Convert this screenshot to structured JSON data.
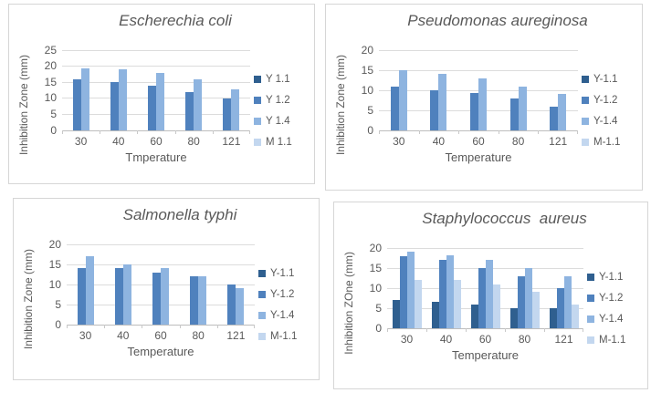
{
  "page": {
    "background": "#ffffff",
    "text_color": "#595959",
    "gridline_color": "#dcdcdc",
    "axis_color": "#bdbdbd"
  },
  "palette": {
    "series1_dark_blue": "#2F5F8F",
    "series2_medium_blue": "#4F81BD",
    "series3_light_blue": "#8EB4E0",
    "series4_pale_blue": "#C3D7EF"
  },
  "chart_data": [
    {
      "type": "bar",
      "title": "Escherechia coli",
      "xlabel": "Tmperature",
      "ylabel": "Inhibition Zone (mm)",
      "ylim": [
        0,
        25
      ],
      "yticks": [
        0,
        5,
        10,
        15,
        20,
        25
      ],
      "grid": true,
      "legend_position": "right",
      "categories": [
        "30",
        "40",
        "60",
        "80",
        "121"
      ],
      "legend": [
        {
          "label": "Y 1.1",
          "color": "#2F5F8F"
        },
        {
          "label": "Y 1.2",
          "color": "#4F81BD"
        },
        {
          "label": "Y 1.4",
          "color": "#8EB4E0"
        },
        {
          "label": "M 1.1",
          "color": "#C3D7EF"
        }
      ],
      "series": [
        {
          "name": "Y 1.2",
          "color": "#4F81BD",
          "values": [
            15.8,
            15.1,
            14,
            12,
            10
          ]
        },
        {
          "name": "Y 1.4",
          "color": "#8EB4E0",
          "values": [
            19.3,
            19,
            17.8,
            15.8,
            12.9
          ]
        }
      ]
    },
    {
      "type": "bar",
      "title": "Pseudomonas aureginosa",
      "xlabel": "Temperature",
      "ylabel": "Inhibition Zone (mm)",
      "ylim": [
        0,
        20
      ],
      "yticks": [
        0,
        5,
        10,
        15,
        20
      ],
      "grid": true,
      "legend_position": "right",
      "categories": [
        "30",
        "40",
        "60",
        "80",
        "121"
      ],
      "legend": [
        {
          "label": "Y-1.1",
          "color": "#2F5F8F"
        },
        {
          "label": "Y-1.2",
          "color": "#4F81BD"
        },
        {
          "label": "Y-1.4",
          "color": "#8EB4E0"
        },
        {
          "label": "M-1.1",
          "color": "#C3D7EF"
        }
      ],
      "series": [
        {
          "name": "Y-1.2",
          "color": "#4F81BD",
          "values": [
            11,
            10,
            9.4,
            8,
            6
          ]
        },
        {
          "name": "Y-1.4",
          "color": "#8EB4E0",
          "values": [
            15,
            14.2,
            13,
            11,
            9.2
          ]
        }
      ]
    },
    {
      "type": "bar",
      "title": "Salmonella typhi",
      "xlabel": "Temperature",
      "ylabel": "Inhibition Zone (mm)",
      "ylim": [
        0,
        20
      ],
      "yticks": [
        0,
        5,
        10,
        15,
        20
      ],
      "grid": true,
      "legend_position": "right",
      "categories": [
        "30",
        "40",
        "60",
        "80",
        "121"
      ],
      "legend": [
        {
          "label": "Y-1.1",
          "color": "#2F5F8F"
        },
        {
          "label": "Y-1.2",
          "color": "#4F81BD"
        },
        {
          "label": "Y-1.4",
          "color": "#8EB4E0"
        },
        {
          "label": "M-1.1",
          "color": "#C3D7EF"
        }
      ],
      "series": [
        {
          "name": "Y-1.2",
          "color": "#4F81BD",
          "values": [
            14,
            14,
            12.9,
            12,
            10
          ]
        },
        {
          "name": "Y-1.4",
          "color": "#8EB4E0",
          "values": [
            17,
            15,
            14,
            12,
            9
          ]
        }
      ]
    },
    {
      "type": "bar",
      "title": "Staphylococcus  aureus",
      "xlabel": "Temperature",
      "ylabel": "Inhibition ZOne (mm)",
      "ylim": [
        0,
        20
      ],
      "yticks": [
        0,
        5,
        10,
        15,
        20
      ],
      "grid": true,
      "legend_position": "right",
      "categories": [
        "30",
        "40",
        "60",
        "80",
        "121"
      ],
      "legend": [
        {
          "label": "Y-1.1",
          "color": "#2F5F8F"
        },
        {
          "label": "Y-1.2",
          "color": "#4F81BD"
        },
        {
          "label": "Y-1.4",
          "color": "#8EB4E0"
        },
        {
          "label": "M-1.1",
          "color": "#C3D7EF"
        }
      ],
      "series": [
        {
          "name": "Y-1.1",
          "color": "#2F5F8F",
          "values": [
            7,
            6.6,
            6,
            5,
            5
          ]
        },
        {
          "name": "Y-1.2",
          "color": "#4F81BD",
          "values": [
            18,
            17,
            15,
            13,
            10
          ]
        },
        {
          "name": "Y-1.4",
          "color": "#8EB4E0",
          "values": [
            19,
            18.2,
            17,
            15,
            13
          ]
        },
        {
          "name": "M-1.1",
          "color": "#C3D7EF",
          "values": [
            12,
            12,
            11,
            9,
            6
          ]
        }
      ]
    }
  ]
}
